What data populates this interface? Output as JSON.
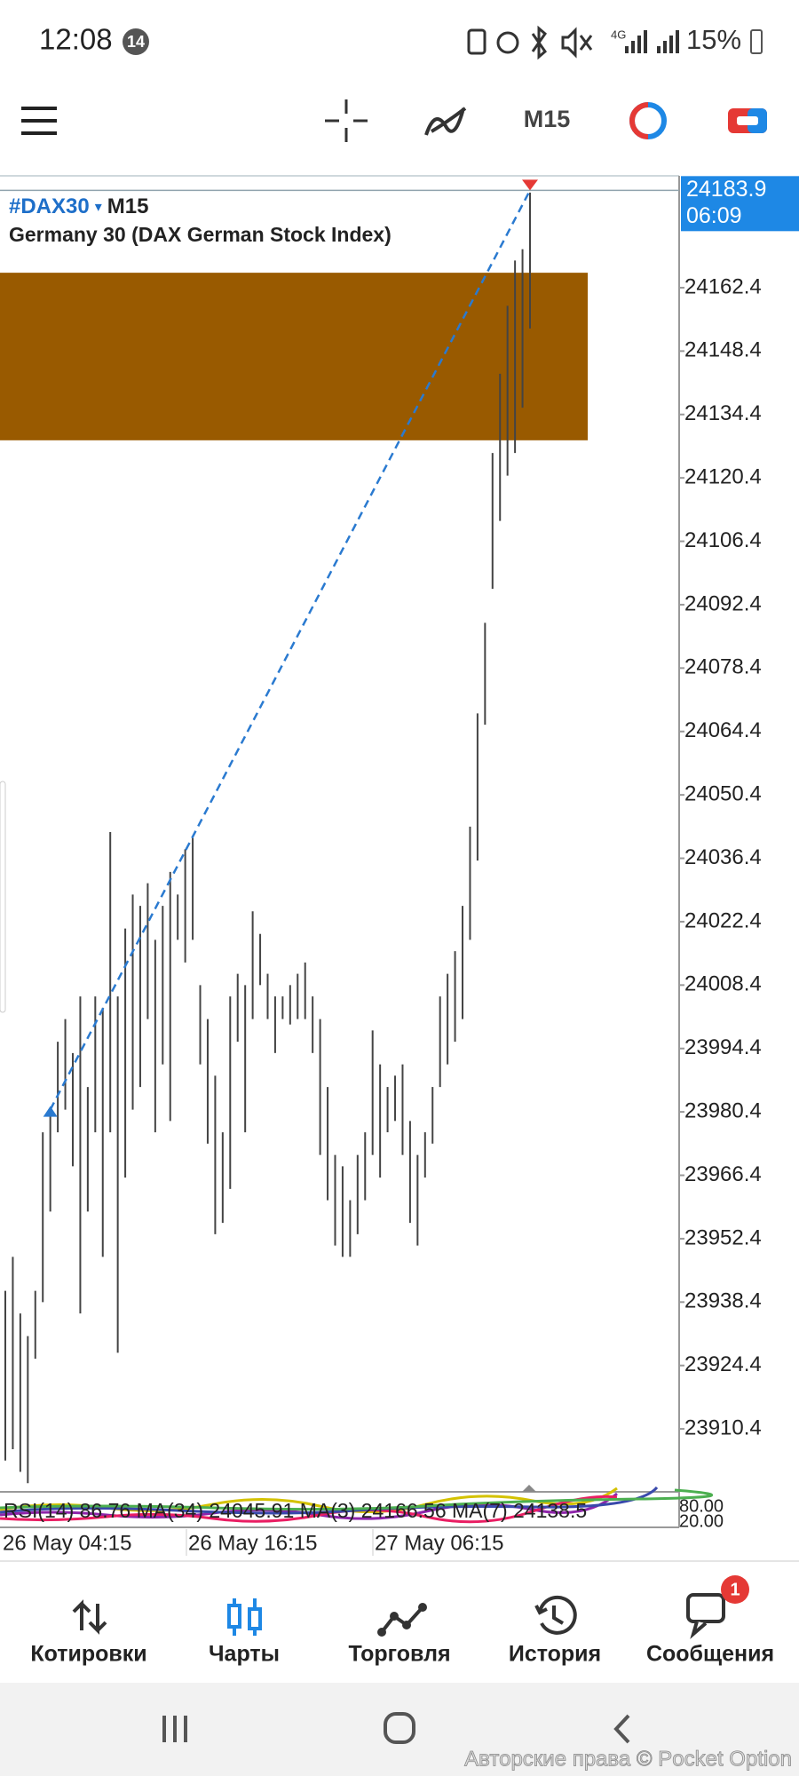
{
  "status_bar": {
    "time": "12:08",
    "badge": "14",
    "network": "4G",
    "battery": "15%"
  },
  "toolbar": {
    "timeframe": "M15"
  },
  "chart_data": {
    "type": "ohlc",
    "symbol": "#DAX30",
    "timeframe": "M15",
    "description": "Germany 30 (DAX German Stock Index)",
    "color": "#444444",
    "ylim": [
      23896.5,
      24187.1
    ],
    "yticks": [
      24162.4,
      24148.4,
      24134.4,
      24120.4,
      24106.4,
      24092.4,
      24078.4,
      24064.4,
      24050.4,
      24036.4,
      24022.4,
      24008.4,
      23994.4,
      23980.4,
      23966.4,
      23952.4,
      23938.4,
      23924.4,
      23910.4
    ],
    "current_price": {
      "value": 24183.9,
      "time": "06:09",
      "color": "#1e88e5"
    },
    "zone": {
      "top": 24165.7,
      "bottom": 24128.7,
      "color": "#995a00"
    },
    "trendline": {
      "from_bar": 6,
      "color": "#2a7ad0"
    },
    "x_labels": [
      "26 May 04:15",
      "26 May 16:15",
      "27 May 06:15"
    ],
    "indicator_text": "RSI(14) 86.76 MA(34) 24045.91 MA(3) 24166.56 MA(7) 24138.5",
    "indicator_ticks": [
      "80.00",
      "20.00"
    ],
    "bars": [
      {
        "high": 23940.9,
        "low": 23903.4
      },
      {
        "high": 23948.4,
        "low": 23905.9
      },
      {
        "high": 23935.9,
        "low": 23900.9
      },
      {
        "high": 23930.9,
        "low": 23898.4
      },
      {
        "high": 23940.9,
        "low": 23925.9
      },
      {
        "high": 23975.9,
        "low": 23938.4
      },
      {
        "high": 23980.9,
        "low": 23958.4
      },
      {
        "high": 23995.9,
        "low": 23975.9
      },
      {
        "high": 24000.9,
        "low": 23980.9
      },
      {
        "high": 23993.4,
        "low": 23968.4
      },
      {
        "high": 24005.9,
        "low": 23935.9
      },
      {
        "high": 23985.9,
        "low": 23958.4
      },
      {
        "high": 24005.9,
        "low": 23975.9
      },
      {
        "high": 24003.4,
        "low": 23948.4
      },
      {
        "high": 24042.2,
        "low": 23975.9
      },
      {
        "high": 24005.9,
        "low": 23927.2
      },
      {
        "high": 24020.9,
        "low": 23965.9
      },
      {
        "high": 24028.4,
        "low": 23980.9
      },
      {
        "high": 24025.9,
        "low": 23985.9
      },
      {
        "high": 24030.9,
        "low": 24000.9
      },
      {
        "high": 24018.4,
        "low": 23975.9
      },
      {
        "high": 24025.9,
        "low": 23990.9
      },
      {
        "high": 24033.4,
        "low": 23978.4
      },
      {
        "high": 24028.4,
        "low": 24018.4
      },
      {
        "high": 24038.4,
        "low": 24013.4
      },
      {
        "high": 24040.9,
        "low": 24018.4
      },
      {
        "high": 24008.4,
        "low": 23990.9
      },
      {
        "high": 24000.9,
        "low": 23973.4
      },
      {
        "high": 23988.4,
        "low": 23953.4
      },
      {
        "high": 23975.9,
        "low": 23955.9
      },
      {
        "high": 24005.9,
        "low": 23963.4
      },
      {
        "high": 24010.9,
        "low": 23995.9
      },
      {
        "high": 24008.4,
        "low": 23975.9
      },
      {
        "high": 24024.7,
        "low": 24000.9
      },
      {
        "high": 24019.7,
        "low": 24008.4
      },
      {
        "high": 24010.9,
        "low": 24000.9
      },
      {
        "high": 24005.9,
        "low": 23993.4
      },
      {
        "high": 24005.9,
        "low": 24000.9
      },
      {
        "high": 24008.4,
        "low": 23999.7
      },
      {
        "high": 24010.9,
        "low": 24000.9
      },
      {
        "high": 24013.4,
        "low": 24000.9
      },
      {
        "high": 24005.9,
        "low": 23993.4
      },
      {
        "high": 24000.9,
        "low": 23970.9
      },
      {
        "high": 23985.9,
        "low": 23960.9
      },
      {
        "high": 23970.9,
        "low": 23950.9
      },
      {
        "high": 23968.4,
        "low": 23948.4
      },
      {
        "high": 23960.9,
        "low": 23948.4
      },
      {
        "high": 23970.9,
        "low": 23953.4
      },
      {
        "high": 23975.9,
        "low": 23960.9
      },
      {
        "high": 23998.4,
        "low": 23970.9
      },
      {
        "high": 23990.9,
        "low": 23965.9
      },
      {
        "high": 23985.9,
        "low": 23975.9
      },
      {
        "high": 23988.4,
        "low": 23978.4
      },
      {
        "high": 23990.9,
        "low": 23970.9
      },
      {
        "high": 23978.4,
        "low": 23955.9
      },
      {
        "high": 23970.9,
        "low": 23950.9
      },
      {
        "high": 23975.9,
        "low": 23965.9
      },
      {
        "high": 23985.9,
        "low": 23973.4
      },
      {
        "high": 24005.9,
        "low": 23985.9
      },
      {
        "high": 24010.9,
        "low": 23990.9
      },
      {
        "high": 24015.9,
        "low": 23995.9
      },
      {
        "high": 24025.9,
        "low": 24000.9
      },
      {
        "high": 24043.4,
        "low": 24018.4
      },
      {
        "high": 24068.4,
        "low": 24035.9
      },
      {
        "high": 24088.4,
        "low": 24065.9
      },
      {
        "high": 24125.9,
        "low": 24095.9
      },
      {
        "high": 24143.4,
        "low": 24110.9
      },
      {
        "high": 24158.4,
        "low": 24120.9
      },
      {
        "high": 24168.4,
        "low": 24125.9
      },
      {
        "high": 24170.9,
        "low": 24135.9
      },
      {
        "high": 24183.4,
        "low": 24153.4
      }
    ]
  },
  "nav": {
    "items": [
      "Котировки",
      "Чарты",
      "Торговля",
      "История",
      "Сообщения"
    ],
    "active_color": "#1e88e5",
    "badge": "1"
  },
  "watermark": "Авторские права © Pocket Option"
}
